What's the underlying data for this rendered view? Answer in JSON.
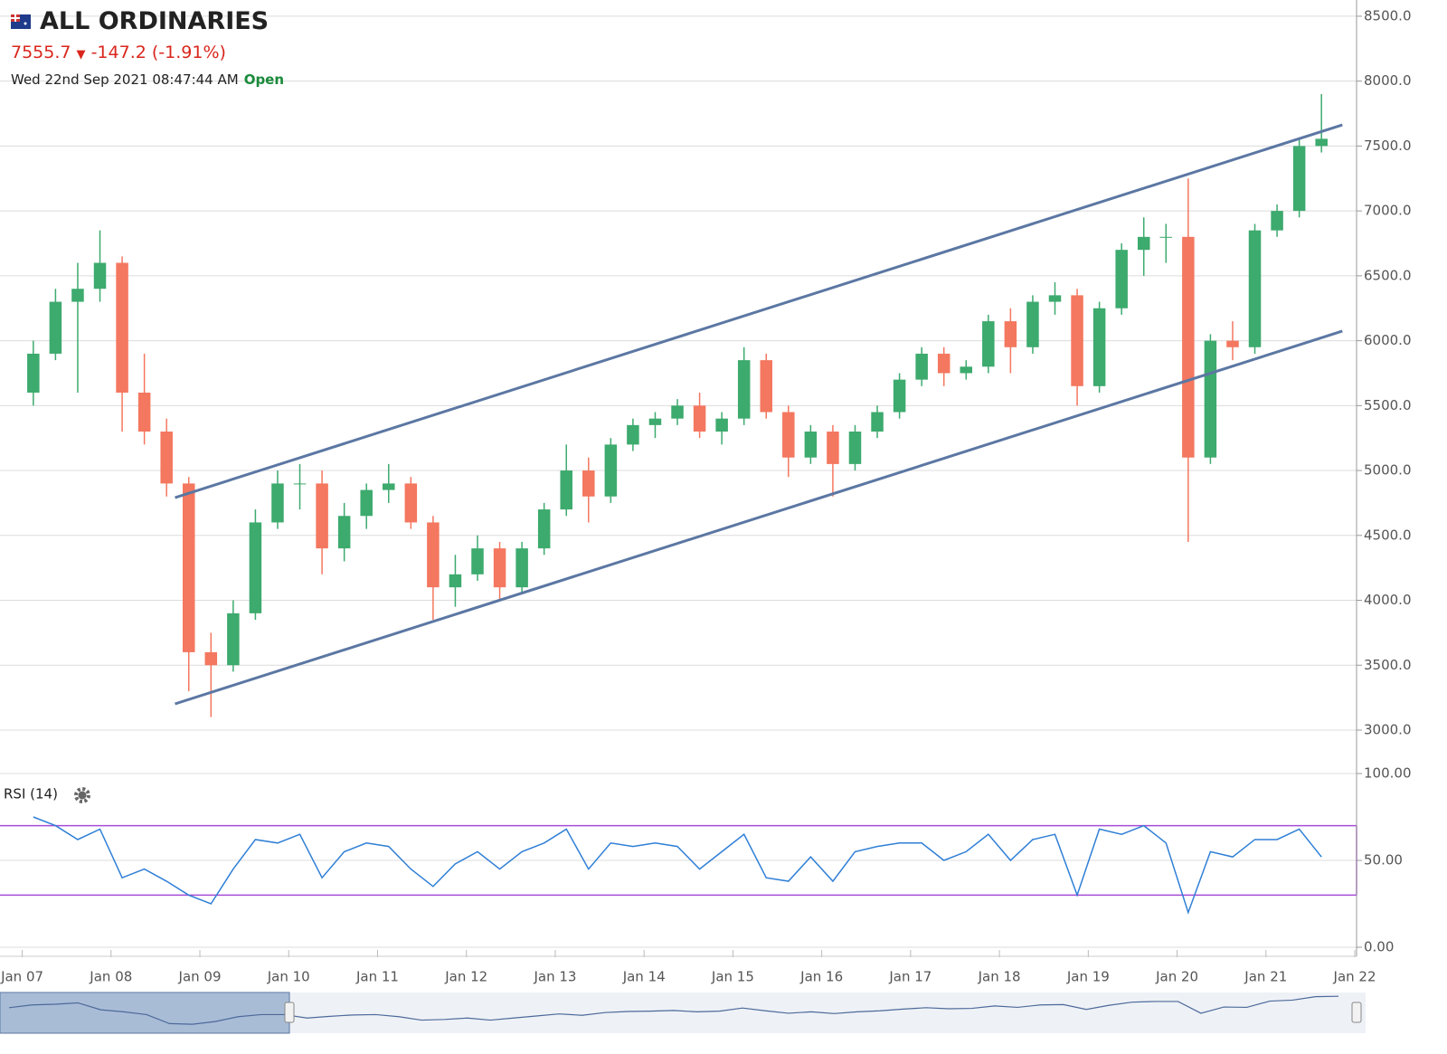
{
  "header": {
    "title": "ALL ORDINARIES",
    "price": "7555.7",
    "change": "-147.2 (-1.91%)",
    "timestamp": "Wed 22nd Sep 2021 08:47:44 AM",
    "status": "Open"
  },
  "chart_data": [
    {
      "type": "candlestick",
      "x": [
        2007.125,
        2007.375,
        2007.625,
        2007.875,
        2008.125,
        2008.375,
        2008.625,
        2008.875,
        2009.125,
        2009.375,
        2009.625,
        2009.875,
        2010.125,
        2010.375,
        2010.625,
        2010.875,
        2011.125,
        2011.375,
        2011.625,
        2011.875,
        2012.125,
        2012.375,
        2012.625,
        2012.875,
        2013.125,
        2013.375,
        2013.625,
        2013.875,
        2014.125,
        2014.375,
        2014.625,
        2014.875,
        2015.125,
        2015.375,
        2015.625,
        2015.875,
        2016.125,
        2016.375,
        2016.625,
        2016.875,
        2017.125,
        2017.375,
        2017.625,
        2017.875,
        2018.125,
        2018.375,
        2018.625,
        2018.875,
        2019.125,
        2019.375,
        2019.625,
        2019.875,
        2020.125,
        2020.375,
        2020.625,
        2020.875,
        2021.125,
        2021.375,
        2021.625
      ],
      "open": [
        5600,
        5900,
        6300,
        6400,
        6600,
        5600,
        5300,
        4900,
        3600,
        3500,
        3900,
        4600,
        4900,
        4900,
        4400,
        4650,
        4850,
        4900,
        4600,
        4100,
        4200,
        4400,
        4100,
        4400,
        4700,
        5000,
        4800,
        5200,
        5350,
        5400,
        5500,
        5300,
        5400,
        5850,
        5450,
        5100,
        5300,
        5050,
        5300,
        5450,
        5700,
        5900,
        5750,
        5800,
        6150,
        5950,
        6300,
        6350,
        5650,
        6250,
        6700,
        6800,
        6800,
        5100,
        6000,
        5950,
        6850,
        7000,
        7500
      ],
      "high": [
        6000,
        6400,
        6600,
        6850,
        6650,
        5900,
        5400,
        4950,
        3750,
        4000,
        4700,
        5000,
        5050,
        5000,
        4750,
        4900,
        5050,
        4950,
        4650,
        4350,
        4500,
        4450,
        4450,
        4750,
        5200,
        5100,
        5250,
        5400,
        5450,
        5550,
        5600,
        5450,
        5950,
        5900,
        5500,
        5350,
        5350,
        5350,
        5500,
        5750,
        5950,
        5950,
        5850,
        6200,
        6250,
        6350,
        6450,
        6400,
        6300,
        6750,
        6950,
        6900,
        7250,
        6050,
        6150,
        6900,
        7050,
        7550,
        7900
      ],
      "low": [
        5500,
        5850,
        5600,
        6300,
        5300,
        5200,
        4800,
        3300,
        3100,
        3450,
        3850,
        4550,
        4700,
        4200,
        4300,
        4550,
        4750,
        4550,
        3850,
        3950,
        4150,
        4000,
        4050,
        4350,
        4650,
        4600,
        4750,
        5150,
        5250,
        5350,
        5250,
        5200,
        5350,
        5400,
        4950,
        5050,
        4800,
        5000,
        5250,
        5400,
        5650,
        5650,
        5700,
        5750,
        5750,
        5900,
        6200,
        5500,
        5600,
        6200,
        6500,
        6600,
        4450,
        5050,
        5850,
        5900,
        6800,
        6950,
        7450
      ],
      "close": [
        5900,
        6300,
        6400,
        6600,
        5600,
        5300,
        4900,
        3600,
        3500,
        3900,
        4600,
        4900,
        4900,
        4400,
        4650,
        4850,
        4900,
        4600,
        4100,
        4200,
        4400,
        4100,
        4400,
        4700,
        5000,
        4800,
        5200,
        5350,
        5400,
        5500,
        5300,
        5400,
        5850,
        5450,
        5100,
        5300,
        5050,
        5300,
        5450,
        5700,
        5900,
        5750,
        5800,
        6150,
        5950,
        6300,
        6350,
        5650,
        6250,
        6700,
        6800,
        6800,
        5100,
        6000,
        5950,
        6850,
        7000,
        7500,
        7555.7
      ],
      "up_color": "#3daa6e",
      "down_color": "#f4775f",
      "xlim": [
        2006.75,
        2022.02
      ],
      "xticks": [
        {
          "value": 2007,
          "label": "Jan 07"
        },
        {
          "value": 2008,
          "label": "Jan 08"
        },
        {
          "value": 2009,
          "label": "Jan 09"
        },
        {
          "value": 2010,
          "label": "Jan 10"
        },
        {
          "value": 2011,
          "label": "Jan 11"
        },
        {
          "value": 2012,
          "label": "Jan 12"
        },
        {
          "value": 2013,
          "label": "Jan 13"
        },
        {
          "value": 2014,
          "label": "Jan 14"
        },
        {
          "value": 2015,
          "label": "Jan 15"
        },
        {
          "value": 2016,
          "label": "Jan 16"
        },
        {
          "value": 2017,
          "label": "Jan 17"
        },
        {
          "value": 2018,
          "label": "Jan 18"
        },
        {
          "value": 2019,
          "label": "Jan 19"
        },
        {
          "value": 2020,
          "label": "Jan 20"
        },
        {
          "value": 2021,
          "label": "Jan 21"
        },
        {
          "value": 2022,
          "label": "Jan 22"
        }
      ],
      "ylim": [
        2735,
        8625
      ],
      "yticks": [
        {
          "value": 3000,
          "label": "3000.0"
        },
        {
          "value": 3500,
          "label": "3500.0"
        },
        {
          "value": 4000,
          "label": "4000.0"
        },
        {
          "value": 4500,
          "label": "4500.0"
        },
        {
          "value": 5000,
          "label": "5000.0"
        },
        {
          "value": 5500,
          "label": "5500.0"
        },
        {
          "value": 6000,
          "label": "6000.0"
        },
        {
          "value": 6500,
          "label": "6500.0"
        },
        {
          "value": 7000,
          "label": "7000.0"
        },
        {
          "value": 7500,
          "label": "7500.0"
        },
        {
          "value": 8000,
          "label": "8000.0"
        },
        {
          "value": 8500,
          "label": "8500.0"
        }
      ],
      "grid": true,
      "trendline_color": "#5b77a3",
      "trendlines": [
        {
          "x": [
            2008.72,
            2021.86
          ],
          "y": [
            4791,
            7663
          ]
        },
        {
          "x": [
            2008.72,
            2021.86
          ],
          "y": [
            3202,
            6074
          ]
        }
      ]
    },
    {
      "type": "line",
      "title": "RSI (14)",
      "x": [
        2007.125,
        2007.375,
        2007.625,
        2007.875,
        2008.125,
        2008.375,
        2008.625,
        2008.875,
        2009.125,
        2009.375,
        2009.625,
        2009.875,
        2010.125,
        2010.375,
        2010.625,
        2010.875,
        2011.125,
        2011.375,
        2011.625,
        2011.875,
        2012.125,
        2012.375,
        2012.625,
        2012.875,
        2013.125,
        2013.375,
        2013.625,
        2013.875,
        2014.125,
        2014.375,
        2014.625,
        2014.875,
        2015.125,
        2015.375,
        2015.625,
        2015.875,
        2016.125,
        2016.375,
        2016.625,
        2016.875,
        2017.125,
        2017.375,
        2017.625,
        2017.875,
        2018.125,
        2018.375,
        2018.625,
        2018.875,
        2019.125,
        2019.375,
        2019.625,
        2019.875,
        2020.125,
        2020.375,
        2020.625,
        2020.875,
        2021.125,
        2021.375,
        2021.625
      ],
      "values": [
        75,
        70,
        62,
        68,
        40,
        45,
        38,
        30,
        25,
        45,
        62,
        60,
        65,
        40,
        55,
        60,
        58,
        45,
        35,
        48,
        55,
        45,
        55,
        60,
        68,
        45,
        60,
        58,
        60,
        58,
        45,
        55,
        65,
        40,
        38,
        52,
        38,
        55,
        58,
        60,
        60,
        50,
        55,
        65,
        50,
        62,
        65,
        30,
        68,
        65,
        70,
        60,
        20,
        55,
        52,
        62,
        62,
        68,
        52
      ],
      "color": "#2f7fd6",
      "bands": [
        30,
        70
      ],
      "band_color": "#a64bd6",
      "ylim": [
        0,
        100
      ],
      "yticks": [
        {
          "value": 0,
          "label": "0.00"
        },
        {
          "value": 50,
          "label": "50.00"
        },
        {
          "value": 100,
          "label": "100.00"
        }
      ]
    }
  ]
}
